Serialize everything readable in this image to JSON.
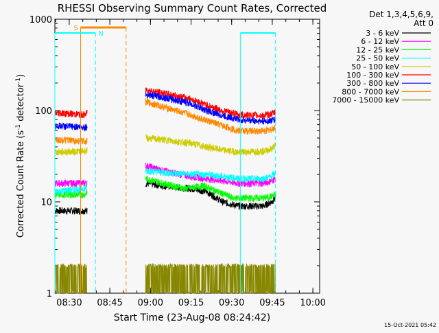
{
  "chart_data": {
    "type": "line",
    "title": "RHESSI Observing Summary Count Rates, Corrected",
    "xlabel": "Start Time (23-Aug-08 08:24:42)",
    "ylabel_main": "Corrected Count Rate (s",
    "ylabel_sup1": "-1",
    "ylabel_mid": " detector",
    "ylabel_sup2": "-1",
    "ylabel_end": ")",
    "y_scale": "log",
    "ylim": [
      1,
      1000
    ],
    "xlim": [
      "08:24:42",
      "10:02:30"
    ],
    "x_ticks": [
      "08:30",
      "08:45",
      "09:00",
      "09:15",
      "09:30",
      "09:45",
      "10:00"
    ],
    "y_ticks": [
      "1",
      "10",
      "100",
      "1000"
    ],
    "legend": {
      "header": "Det 1,3,4,5,6,9,",
      "subheader": "Att 0",
      "placement": "right"
    },
    "timestamp": "15-Oct-2021 05:42",
    "series": [
      {
        "name": "3 - 6 keV",
        "color": "#000000",
        "values": [
          [
            0,
            8
          ],
          [
            11,
            8
          ],
          [
            12,
            8
          ],
          [
            19.5,
            null
          ],
          [
            33.5,
            16
          ],
          [
            40,
            15
          ],
          [
            50,
            14
          ],
          [
            56,
            13
          ],
          [
            62,
            10
          ],
          [
            68,
            9
          ],
          [
            77,
            9
          ],
          [
            80,
            10
          ],
          [
            81.5,
            11
          ]
        ]
      },
      {
        "name": "6 - 12 keV",
        "color": "#ff00ff",
        "values": [
          [
            0,
            16
          ],
          [
            11,
            16
          ],
          [
            12,
            16
          ],
          [
            19.5,
            null
          ],
          [
            33.5,
            25
          ],
          [
            40,
            22
          ],
          [
            50,
            19
          ],
          [
            56,
            18
          ],
          [
            62,
            17
          ],
          [
            68,
            16
          ],
          [
            77,
            16
          ],
          [
            80,
            17
          ],
          [
            81.5,
            18
          ]
        ]
      },
      {
        "name": "12 - 25 keV",
        "color": "#00ff00",
        "values": [
          [
            0,
            12
          ],
          [
            11,
            12
          ],
          [
            12,
            13
          ],
          [
            19.5,
            null
          ],
          [
            33.5,
            18
          ],
          [
            40,
            16
          ],
          [
            48,
            14
          ],
          [
            55,
            15
          ],
          [
            60,
            13
          ],
          [
            66,
            11
          ],
          [
            77,
            11
          ],
          [
            80,
            11.5
          ],
          [
            81.5,
            12
          ]
        ]
      },
      {
        "name": "25 - 50 keV",
        "color": "#00ffff",
        "values": [
          [
            0,
            13
          ],
          [
            11,
            14
          ],
          [
            12,
            15
          ],
          [
            19.5,
            null
          ],
          [
            33.5,
            22
          ],
          [
            40,
            21
          ],
          [
            50,
            20
          ],
          [
            56,
            20
          ],
          [
            62,
            19
          ],
          [
            68,
            18
          ],
          [
            77,
            18
          ],
          [
            80,
            19
          ],
          [
            81.5,
            21
          ]
        ]
      },
      {
        "name": "50 - 100 keV",
        "color": "#cccc00",
        "values": [
          [
            0,
            35
          ],
          [
            11,
            36
          ],
          [
            12,
            37
          ],
          [
            19.5,
            null
          ],
          [
            33.5,
            50
          ],
          [
            40,
            48
          ],
          [
            50,
            44
          ],
          [
            56,
            40
          ],
          [
            62,
            37
          ],
          [
            68,
            35
          ],
          [
            77,
            36
          ],
          [
            80,
            38
          ],
          [
            81.5,
            42
          ]
        ]
      },
      {
        "name": "100 - 300 keV",
        "color": "#ff0000",
        "values": [
          [
            0,
            95
          ],
          [
            11,
            90
          ],
          [
            12,
            95
          ],
          [
            19.5,
            null
          ],
          [
            33.5,
            170
          ],
          [
            40,
            155
          ],
          [
            50,
            135
          ],
          [
            56,
            115
          ],
          [
            62,
            100
          ],
          [
            68,
            90
          ],
          [
            77,
            88
          ],
          [
            80,
            92
          ],
          [
            81.5,
            96
          ]
        ]
      },
      {
        "name": "300 - 800 keV",
        "color": "#0000ff",
        "values": [
          [
            0,
            68
          ],
          [
            11,
            66
          ],
          [
            12,
            66
          ],
          [
            19.5,
            null
          ],
          [
            33.5,
            150
          ],
          [
            40,
            140
          ],
          [
            50,
            120
          ],
          [
            56,
            100
          ],
          [
            62,
            88
          ],
          [
            68,
            80
          ],
          [
            77,
            76
          ],
          [
            80,
            78
          ],
          [
            81.5,
            80
          ]
        ]
      },
      {
        "name": "800 - 7000 keV",
        "color": "#ff8800",
        "values": [
          [
            0,
            48
          ],
          [
            11,
            46
          ],
          [
            12,
            47
          ],
          [
            19.5,
            null
          ],
          [
            33.5,
            125
          ],
          [
            40,
            110
          ],
          [
            50,
            90
          ],
          [
            56,
            78
          ],
          [
            62,
            68
          ],
          [
            68,
            60
          ],
          [
            77,
            60
          ],
          [
            80,
            62
          ],
          [
            81.5,
            66
          ]
        ]
      },
      {
        "name": "7000 - 15000 keV",
        "color": "#888800",
        "values": [
          [
            0,
            2
          ],
          [
            11,
            2
          ],
          [
            12,
            1
          ],
          [
            19.5,
            null
          ],
          [
            33.5,
            1
          ],
          [
            40,
            2
          ],
          [
            48,
            2
          ],
          [
            52,
            1
          ],
          [
            60,
            1
          ],
          [
            66,
            1
          ],
          [
            76,
            2
          ],
          [
            80,
            2
          ],
          [
            81.5,
            2
          ]
        ]
      }
    ],
    "annotations": [
      {
        "label": "S",
        "color": "#ff8800"
      },
      {
        "label": "N",
        "color": "#00ffff"
      }
    ]
  }
}
